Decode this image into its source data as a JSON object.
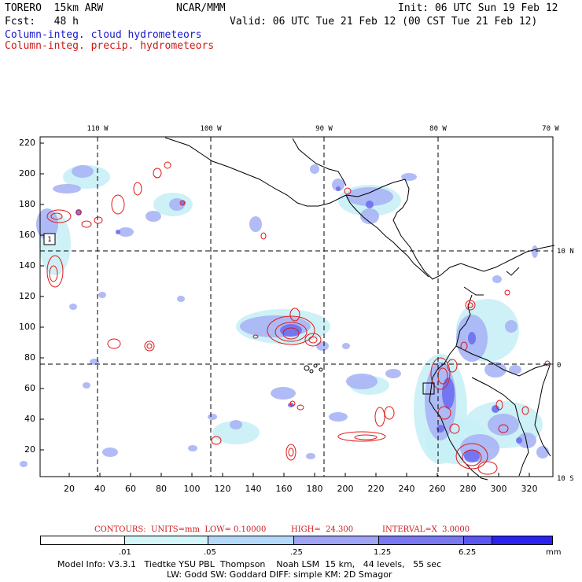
{
  "header": {
    "model": "TORERO  15km ARW",
    "center": "NCAR/MMM",
    "init": "Init: 06 UTC Sun 19 Feb 12",
    "fcst": "Fcst:   48 h",
    "valid": "Valid: 06 UTC Tue 21 Feb 12 (00 CST Tue 21 Feb 12)",
    "field1": "Column-integ. cloud hydrometeors",
    "field2": "Column-integ. precip. hydrometeors"
  },
  "map": {
    "lon_labels": [
      "110 W",
      "100 W",
      "90 W",
      "80 W",
      "70 W"
    ],
    "lat_labels": [
      "10 N",
      "0",
      "10 S"
    ],
    "y_ticks": [
      "220",
      "200",
      "180",
      "160",
      "140",
      "120",
      "100",
      "80",
      "60",
      "40",
      "20"
    ],
    "x_ticks": [
      "20",
      "40",
      "60",
      "80",
      "100",
      "120",
      "140",
      "160",
      "180",
      "200",
      "220",
      "240",
      "260",
      "280",
      "300",
      "320"
    ],
    "box_label": "1",
    "colors": {
      "cloud_light": "#c8f0f6",
      "cloud_mid": "#a8b4f4",
      "cloud_dark": "#6e6ef0",
      "precip": "#e01818",
      "land": "#000000"
    }
  },
  "contour_info": {
    "units": "CONTOURS:  UNITS=mm  LOW= 0.10000",
    "high": "HIGH=  24.300",
    "interval": "INTERVAL=X  3.0000"
  },
  "colorbar": {
    "labels": [
      ".01",
      ".05",
      ".25",
      "1.25",
      "6.25"
    ],
    "unit": "mm",
    "colors": [
      "#ffffff",
      "#d4f6f8",
      "#b4d8f8",
      "#a0a4f4",
      "#7a78f2",
      "#5a56f2",
      "#2c22f0"
    ]
  },
  "footer": {
    "line1": "Model Info: V3.3.1   Tiedtke YSU PBL  Thompson    Noah LSM  15 km,   44 levels,   55 sec",
    "line2": "LW: Godd SW: Goddard DIFF: simple KM: 2D Smagor"
  }
}
